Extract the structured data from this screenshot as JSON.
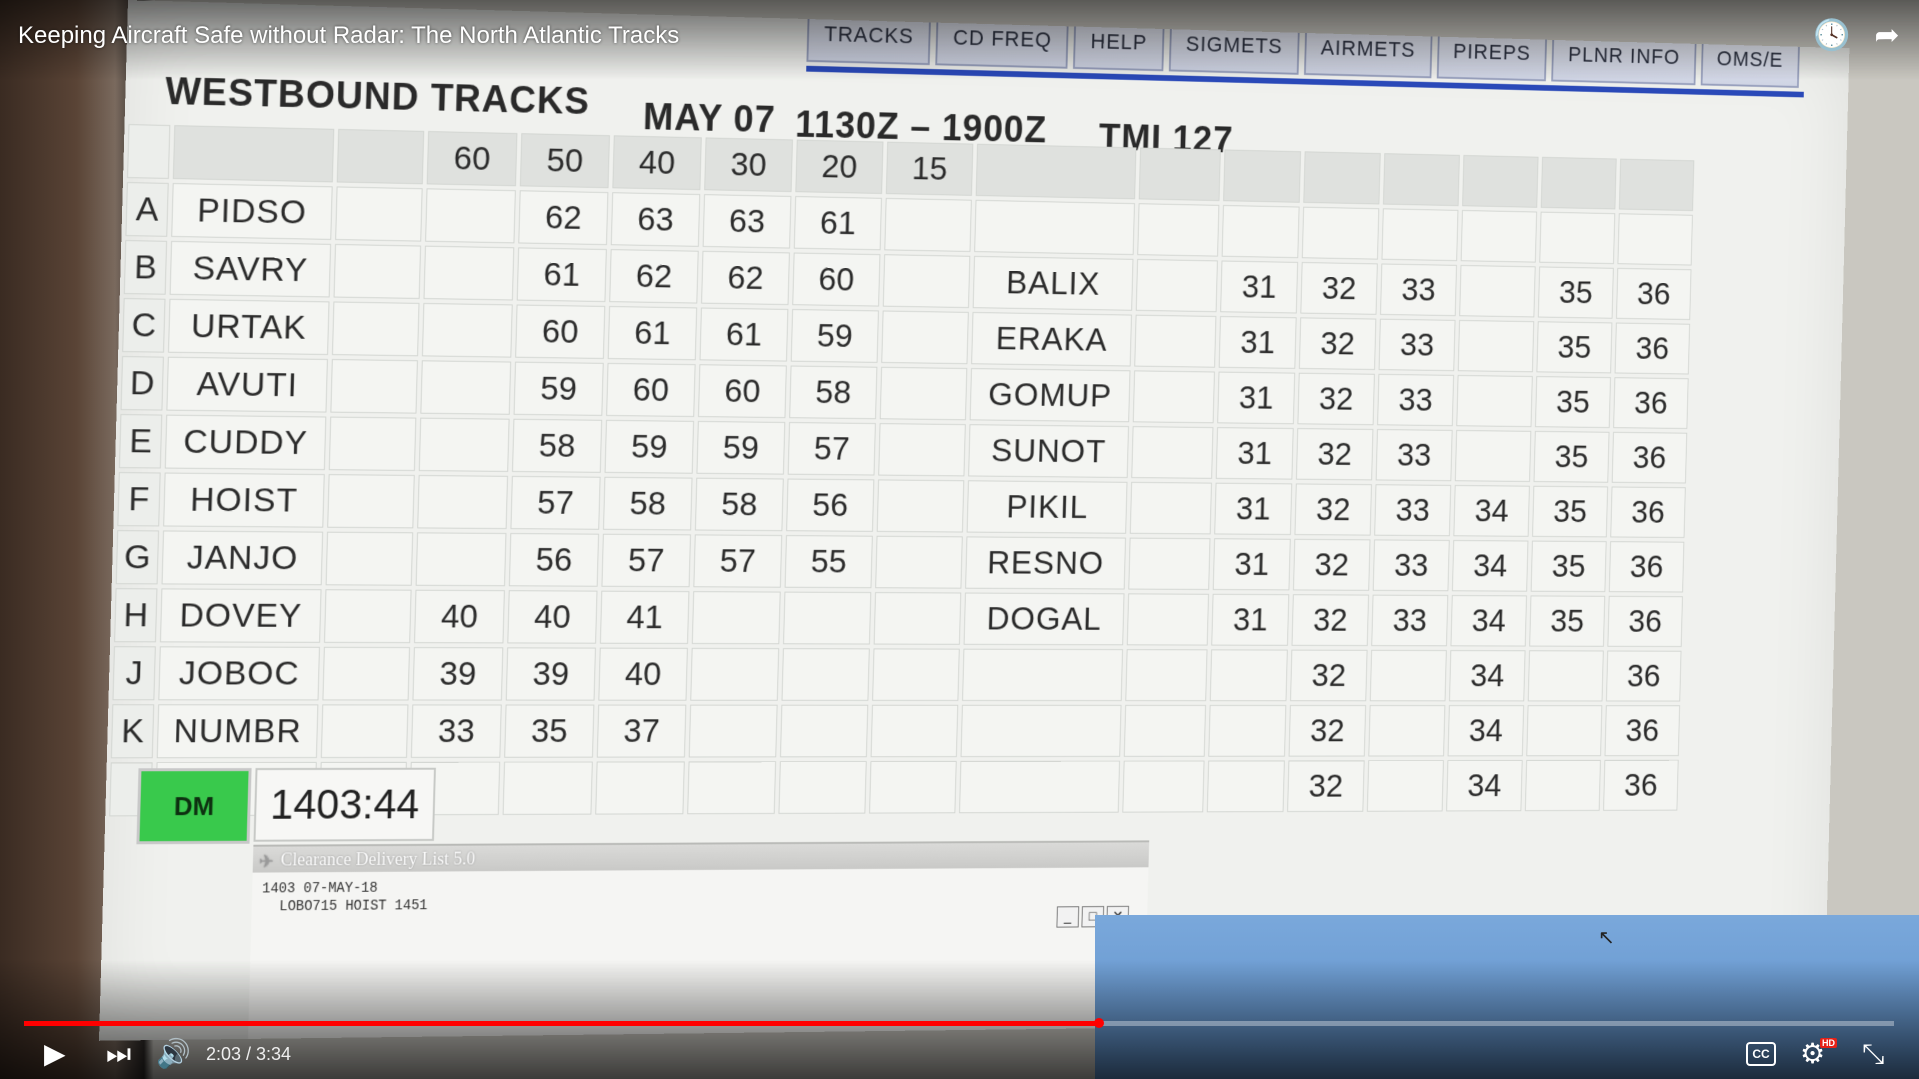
{
  "video": {
    "title": "Keeping Aircraft Safe without Radar: The North Atlantic Tracks",
    "current_time": "2:03",
    "duration": "3:34",
    "time_display": "2:03 / 3:34",
    "progress_fraction": 0.5748
  },
  "icons": {
    "watch_later": "clock-icon",
    "share": "share-icon",
    "play": "play-icon",
    "next": "next-icon",
    "volume": "volume-icon",
    "captions": "cc-icon",
    "settings": "gear-icon",
    "exit_fullscreen": "exit-fullscreen-icon"
  },
  "captions_label": "CC",
  "hd_label": "HD",
  "menu": {
    "items": [
      "TRACKS",
      "CD FREQ",
      "HELP",
      "SIGMETS",
      "AIRMETS",
      "PIREPS",
      "PLNR INFO",
      "OMS/E"
    ]
  },
  "tracks": {
    "heading": "WESTBOUND TRACKS",
    "date": "MAY 07",
    "window": "1130Z – 1900Z",
    "tmi": "TMI 127",
    "lat_headers": [
      "60",
      "50",
      "40",
      "30",
      "20",
      "15"
    ],
    "rows": [
      {
        "letter": "A",
        "entry": "PIDSO",
        "lats": [
          "",
          "62",
          "63",
          "63",
          "61",
          ""
        ],
        "exit": "",
        "levels": [
          "",
          "",
          "",
          "",
          "",
          ""
        ]
      },
      {
        "letter": "B",
        "entry": "SAVRY",
        "lats": [
          "",
          "61",
          "62",
          "62",
          "60",
          ""
        ],
        "exit": "BALIX",
        "levels": [
          "31",
          "32",
          "33",
          "",
          "35",
          "36"
        ]
      },
      {
        "letter": "C",
        "entry": "URTAK",
        "lats": [
          "",
          "60",
          "61",
          "61",
          "59",
          ""
        ],
        "exit": "ERAKA",
        "levels": [
          "31",
          "32",
          "33",
          "",
          "35",
          "36"
        ]
      },
      {
        "letter": "D",
        "entry": "AVUTI",
        "lats": [
          "",
          "59",
          "60",
          "60",
          "58",
          ""
        ],
        "exit": "GOMUP",
        "levels": [
          "31",
          "32",
          "33",
          "",
          "35",
          "36"
        ]
      },
      {
        "letter": "E",
        "entry": "CUDDY",
        "lats": [
          "",
          "58",
          "59",
          "59",
          "57",
          ""
        ],
        "exit": "SUNOT",
        "levels": [
          "31",
          "32",
          "33",
          "",
          "35",
          "36"
        ]
      },
      {
        "letter": "F",
        "entry": "HOIST",
        "lats": [
          "",
          "57",
          "58",
          "58",
          "56",
          ""
        ],
        "exit": "PIKIL",
        "levels": [
          "31",
          "32",
          "33",
          "34",
          "35",
          "36"
        ]
      },
      {
        "letter": "G",
        "entry": "JANJO",
        "lats": [
          "",
          "56",
          "57",
          "57",
          "55",
          ""
        ],
        "exit": "RESNO",
        "levels": [
          "31",
          "32",
          "33",
          "34",
          "35",
          "36"
        ]
      },
      {
        "letter": "H",
        "entry": "DOVEY",
        "lats": [
          "40",
          "40",
          "41",
          "",
          "",
          ""
        ],
        "exit": "DOGAL",
        "levels": [
          "31",
          "32",
          "33",
          "34",
          "35",
          "36"
        ]
      },
      {
        "letter": "J",
        "entry": "JOBOC",
        "lats": [
          "39",
          "39",
          "40",
          "",
          "",
          ""
        ],
        "exit": "",
        "levels": [
          "",
          "32",
          "",
          "34",
          "",
          "36"
        ]
      },
      {
        "letter": "K",
        "entry": "NUMBR",
        "lats": [
          "33",
          "35",
          "37",
          "",
          "",
          ""
        ],
        "exit": "",
        "levels": [
          "",
          "32",
          "",
          "34",
          "",
          "36"
        ]
      }
    ],
    "extra_level_rows": [
      [
        "",
        "32",
        "",
        "34",
        "",
        "36"
      ]
    ],
    "status_label": "DM",
    "clock": "1403:44"
  },
  "clearance_window": {
    "title": "Clearance Delivery List 5.0",
    "line1": "1403 07-MAY-18",
    "line2": "LOBO715  HOIST 1451"
  },
  "colors": {
    "status_green": "#39c94c",
    "menu_blue": "#2a49b8",
    "progress_red": "#ff0000"
  }
}
